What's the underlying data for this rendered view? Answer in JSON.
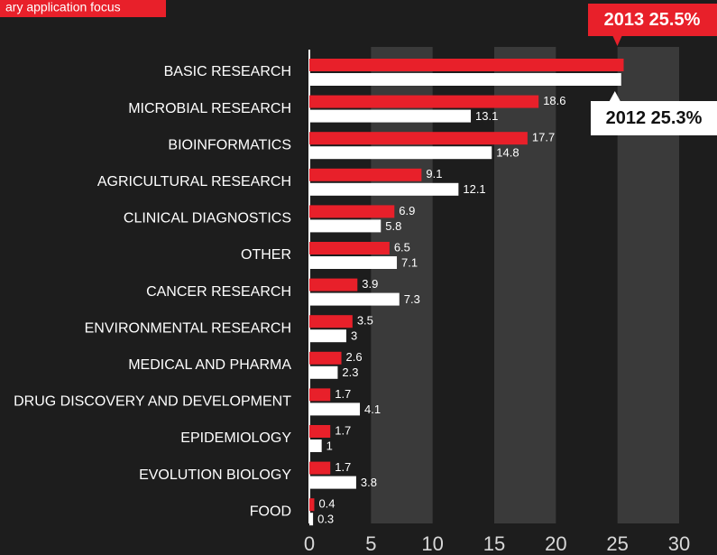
{
  "chart_data": {
    "type": "bar",
    "orientation": "horizontal",
    "title": "ary application focus",
    "categories": [
      "BASIC RESEARCH",
      "MICROBIAL RESEARCH",
      "BIOINFORMATICS",
      "AGRICULTURAL RESEARCH",
      "CLINICAL DIAGNOSTICS",
      "OTHER",
      "CANCER RESEARCH",
      "ENVIRONMENTAL RESEARCH",
      "MEDICAL AND PHARMA",
      "DRUG DISCOVERY AND DEVELOPMENT",
      "EPIDEMIOLOGY",
      "EVOLUTION BIOLOGY",
      "FOOD"
    ],
    "series": [
      {
        "name": "2013",
        "color": "#e8202a",
        "values": [
          25.5,
          18.6,
          17.7,
          9.1,
          6.9,
          6.5,
          3.9,
          3.5,
          2.6,
          1.7,
          1.7,
          1.7,
          0.4
        ],
        "value_labels": [
          "25.5%",
          "18.6",
          "17.7",
          "9.1",
          "6.9",
          "6.5",
          "3.9",
          "3.5",
          "2.6",
          "1.7",
          "1.7",
          "1.7",
          "0.4"
        ]
      },
      {
        "name": "2012",
        "color": "#ffffff",
        "values": [
          25.3,
          13.1,
          14.8,
          12.1,
          5.8,
          7.1,
          7.3,
          3,
          2.3,
          4.1,
          1,
          3.8,
          0.3
        ],
        "value_labels": [
          "25.3%",
          "13.1",
          "14.8",
          "12.1",
          "5.8",
          "7.1",
          "7.3",
          "3",
          "2.3",
          "4.1",
          "1",
          "3.8",
          "0.3"
        ]
      }
    ],
    "xlim": [
      0,
      30
    ],
    "xticks": [
      0,
      5,
      10,
      15,
      20,
      25,
      30
    ],
    "grid": "bands"
  }
}
